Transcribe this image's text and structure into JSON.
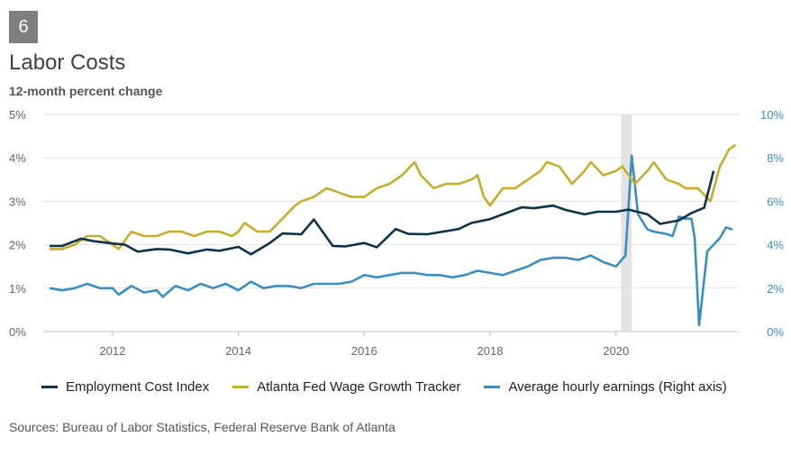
{
  "badge": "6",
  "title": "Labor Costs",
  "subtitle": "12-month percent change",
  "sources": "Sources: Bureau of Labor Statistics, Federal Reserve Bank of Atlanta",
  "chart_data": {
    "type": "line",
    "x_range": [
      2010.9,
      2021.95
    ],
    "left_axis": {
      "ylim": [
        0,
        5
      ],
      "ticks": [
        "0%",
        "1%",
        "2%",
        "3%",
        "4%",
        "5%"
      ]
    },
    "right_axis": {
      "ylim": [
        0,
        10
      ],
      "ticks": [
        "0%",
        "2%",
        "4%",
        "6%",
        "8%",
        "10%"
      ]
    },
    "x_ticks": [
      {
        "value": 2012,
        "label": "2012"
      },
      {
        "value": 2014,
        "label": "2014"
      },
      {
        "value": 2016,
        "label": "2016"
      },
      {
        "value": 2018,
        "label": "2018"
      },
      {
        "value": 2020,
        "label": "2020"
      }
    ],
    "recession_band": [
      2020.08,
      2020.25
    ],
    "legend_position": "bottom",
    "series": [
      {
        "name": "Employment Cost Index",
        "axis": "left",
        "color": "#0d3349",
        "points": [
          [
            2011.0,
            1.97
          ],
          [
            2011.2,
            1.97
          ],
          [
            2011.5,
            2.14
          ],
          [
            2011.7,
            2.08
          ],
          [
            2012.0,
            2.03
          ],
          [
            2012.2,
            2.0
          ],
          [
            2012.4,
            1.84
          ],
          [
            2012.7,
            1.9
          ],
          [
            2012.9,
            1.89
          ],
          [
            2013.2,
            1.8
          ],
          [
            2013.5,
            1.89
          ],
          [
            2013.7,
            1.86
          ],
          [
            2014.0,
            1.95
          ],
          [
            2014.2,
            1.78
          ],
          [
            2014.5,
            2.04
          ],
          [
            2014.7,
            2.26
          ],
          [
            2015.0,
            2.24
          ],
          [
            2015.2,
            2.58
          ],
          [
            2015.5,
            1.97
          ],
          [
            2015.7,
            1.96
          ],
          [
            2016.0,
            2.04
          ],
          [
            2016.2,
            1.94
          ],
          [
            2016.5,
            2.36
          ],
          [
            2016.7,
            2.25
          ],
          [
            2017.0,
            2.24
          ],
          [
            2017.5,
            2.36
          ],
          [
            2017.7,
            2.5
          ],
          [
            2018.0,
            2.59
          ],
          [
            2018.2,
            2.7
          ],
          [
            2018.5,
            2.86
          ],
          [
            2018.7,
            2.84
          ],
          [
            2019.0,
            2.9
          ],
          [
            2019.2,
            2.8
          ],
          [
            2019.5,
            2.7
          ],
          [
            2019.7,
            2.76
          ],
          [
            2020.0,
            2.76
          ],
          [
            2020.2,
            2.81
          ],
          [
            2020.5,
            2.7
          ],
          [
            2020.7,
            2.48
          ],
          [
            2021.0,
            2.56
          ],
          [
            2021.2,
            2.73
          ],
          [
            2021.4,
            2.85
          ],
          [
            2021.55,
            3.7
          ]
        ]
      },
      {
        "name": "Atlanta Fed Wage Growth Tracker",
        "axis": "left",
        "color": "#c7ad2f",
        "points": [
          [
            2011.0,
            1.9
          ],
          [
            2011.2,
            1.9
          ],
          [
            2011.4,
            2.0
          ],
          [
            2011.6,
            2.2
          ],
          [
            2011.8,
            2.2
          ],
          [
            2012.0,
            2.0
          ],
          [
            2012.1,
            1.9
          ],
          [
            2012.3,
            2.3
          ],
          [
            2012.5,
            2.2
          ],
          [
            2012.7,
            2.2
          ],
          [
            2012.9,
            2.3
          ],
          [
            2013.1,
            2.3
          ],
          [
            2013.3,
            2.2
          ],
          [
            2013.5,
            2.3
          ],
          [
            2013.7,
            2.3
          ],
          [
            2013.9,
            2.2
          ],
          [
            2014.0,
            2.3
          ],
          [
            2014.1,
            2.5
          ],
          [
            2014.3,
            2.3
          ],
          [
            2014.5,
            2.3
          ],
          [
            2014.7,
            2.6
          ],
          [
            2014.9,
            2.9
          ],
          [
            2015.0,
            3.0
          ],
          [
            2015.2,
            3.1
          ],
          [
            2015.4,
            3.3
          ],
          [
            2015.6,
            3.2
          ],
          [
            2015.8,
            3.1
          ],
          [
            2016.0,
            3.1
          ],
          [
            2016.2,
            3.3
          ],
          [
            2016.4,
            3.4
          ],
          [
            2016.6,
            3.6
          ],
          [
            2016.8,
            3.9
          ],
          [
            2016.9,
            3.6
          ],
          [
            2017.1,
            3.3
          ],
          [
            2017.3,
            3.4
          ],
          [
            2017.5,
            3.4
          ],
          [
            2017.7,
            3.5
          ],
          [
            2017.8,
            3.6
          ],
          [
            2017.9,
            3.1
          ],
          [
            2018.0,
            2.9
          ],
          [
            2018.2,
            3.3
          ],
          [
            2018.4,
            3.3
          ],
          [
            2018.6,
            3.5
          ],
          [
            2018.8,
            3.7
          ],
          [
            2018.9,
            3.9
          ],
          [
            2019.1,
            3.8
          ],
          [
            2019.3,
            3.4
          ],
          [
            2019.5,
            3.7
          ],
          [
            2019.6,
            3.9
          ],
          [
            2019.8,
            3.6
          ],
          [
            2020.0,
            3.7
          ],
          [
            2020.1,
            3.8
          ],
          [
            2020.3,
            3.4
          ],
          [
            2020.5,
            3.7
          ],
          [
            2020.6,
            3.9
          ],
          [
            2020.8,
            3.5
          ],
          [
            2021.0,
            3.4
          ],
          [
            2021.1,
            3.3
          ],
          [
            2021.3,
            3.3
          ],
          [
            2021.5,
            3.0
          ],
          [
            2021.65,
            3.8
          ],
          [
            2021.8,
            4.2
          ],
          [
            2021.9,
            4.3
          ]
        ]
      },
      {
        "name": "Average hourly earnings (Right axis)",
        "axis": "right",
        "color": "#3a8fbf",
        "points": [
          [
            2011.0,
            2.0
          ],
          [
            2011.2,
            1.9
          ],
          [
            2011.4,
            2.0
          ],
          [
            2011.6,
            2.2
          ],
          [
            2011.8,
            2.0
          ],
          [
            2012.0,
            2.0
          ],
          [
            2012.1,
            1.7
          ],
          [
            2012.3,
            2.1
          ],
          [
            2012.5,
            1.8
          ],
          [
            2012.7,
            1.9
          ],
          [
            2012.8,
            1.6
          ],
          [
            2013.0,
            2.1
          ],
          [
            2013.2,
            1.9
          ],
          [
            2013.4,
            2.2
          ],
          [
            2013.6,
            2.0
          ],
          [
            2013.8,
            2.2
          ],
          [
            2014.0,
            1.9
          ],
          [
            2014.2,
            2.3
          ],
          [
            2014.4,
            2.0
          ],
          [
            2014.6,
            2.1
          ],
          [
            2014.8,
            2.1
          ],
          [
            2015.0,
            2.0
          ],
          [
            2015.2,
            2.2
          ],
          [
            2015.4,
            2.2
          ],
          [
            2015.6,
            2.2
          ],
          [
            2015.8,
            2.3
          ],
          [
            2016.0,
            2.6
          ],
          [
            2016.2,
            2.5
          ],
          [
            2016.4,
            2.6
          ],
          [
            2016.6,
            2.7
          ],
          [
            2016.8,
            2.7
          ],
          [
            2017.0,
            2.6
          ],
          [
            2017.2,
            2.6
          ],
          [
            2017.4,
            2.5
          ],
          [
            2017.6,
            2.6
          ],
          [
            2017.8,
            2.8
          ],
          [
            2018.0,
            2.7
          ],
          [
            2018.2,
            2.6
          ],
          [
            2018.4,
            2.8
          ],
          [
            2018.6,
            3.0
          ],
          [
            2018.8,
            3.3
          ],
          [
            2019.0,
            3.4
          ],
          [
            2019.2,
            3.4
          ],
          [
            2019.4,
            3.3
          ],
          [
            2019.6,
            3.5
          ],
          [
            2019.8,
            3.2
          ],
          [
            2019.9,
            3.1
          ],
          [
            2020.0,
            3.0
          ],
          [
            2020.15,
            3.5
          ],
          [
            2020.25,
            8.1
          ],
          [
            2020.35,
            5.4
          ],
          [
            2020.5,
            4.7
          ],
          [
            2020.6,
            4.6
          ],
          [
            2020.8,
            4.5
          ],
          [
            2020.9,
            4.4
          ],
          [
            2021.0,
            5.3
          ],
          [
            2021.1,
            5.2
          ],
          [
            2021.2,
            5.2
          ],
          [
            2021.25,
            4.3
          ],
          [
            2021.32,
            0.3
          ],
          [
            2021.45,
            3.7
          ],
          [
            2021.55,
            4.0
          ],
          [
            2021.65,
            4.3
          ],
          [
            2021.75,
            4.8
          ],
          [
            2021.85,
            4.7
          ]
        ]
      }
    ]
  }
}
